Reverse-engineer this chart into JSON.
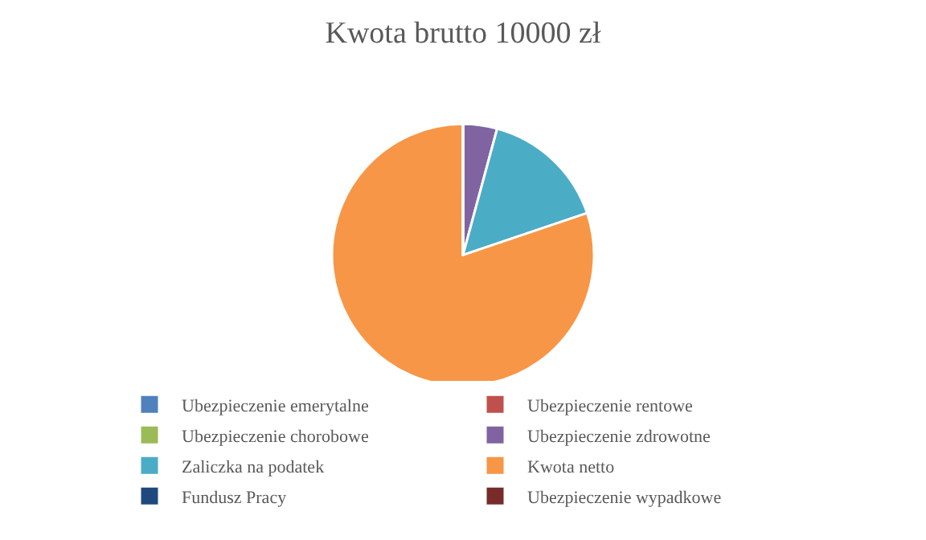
{
  "chart_data": {
    "type": "pie",
    "title": "Kwota brutto 10000 zł",
    "categories": [
      "Ubezpieczenie emerytalne",
      "Ubezpieczenie rentowe",
      "Ubezpieczenie chorobowe",
      "Ubezpieczenie zdrowotne",
      "Zaliczka na podatek",
      "Kwota netto",
      "Fundusz Pracy",
      "Ubezpieczenie wypadkowe"
    ],
    "values": [
      0,
      0,
      0,
      4.2,
      15.6,
      80.2,
      0,
      0
    ],
    "colors": [
      "#4f81bd",
      "#c0504d",
      "#9bbb59",
      "#8064a2",
      "#4bacc6",
      "#f79646",
      "#1f497d",
      "#772c2a"
    ],
    "legend": "bottom"
  }
}
